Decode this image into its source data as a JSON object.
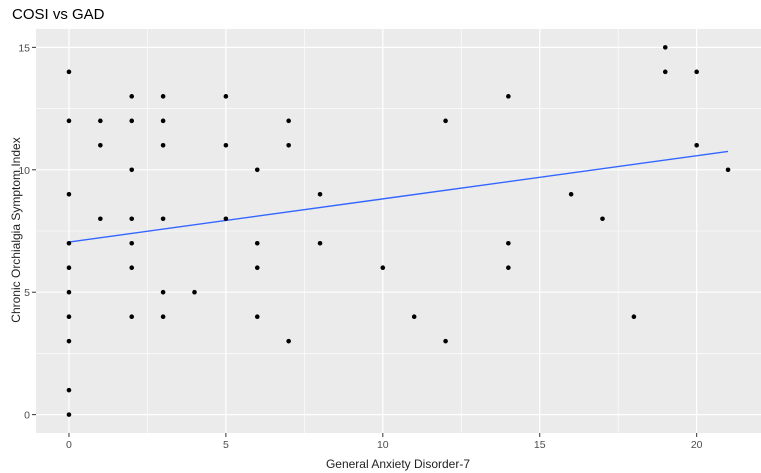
{
  "chart_data": {
    "type": "scatter",
    "title": "COSI vs GAD",
    "xlabel": "General Anxiety Disorder-7",
    "ylabel": "Chronic Orchialgia Symptom Index",
    "xlim": [
      -1.05,
      22.05
    ],
    "ylim": [
      -0.75,
      15.75
    ],
    "xticks": [
      0,
      5,
      10,
      15,
      20
    ],
    "yticks": [
      0,
      5,
      10,
      15
    ],
    "grid": true,
    "background": "#ebebeb",
    "grid_color": "#ffffff",
    "point_color": "#000000",
    "trend_color": "#3366ff",
    "points": [
      {
        "x": 0,
        "y": 14
      },
      {
        "x": 0,
        "y": 12
      },
      {
        "x": 0,
        "y": 9
      },
      {
        "x": 0,
        "y": 7
      },
      {
        "x": 0,
        "y": 6
      },
      {
        "x": 0,
        "y": 5
      },
      {
        "x": 0,
        "y": 4
      },
      {
        "x": 0,
        "y": 3
      },
      {
        "x": 0,
        "y": 1
      },
      {
        "x": 0,
        "y": 0
      },
      {
        "x": 1,
        "y": 12
      },
      {
        "x": 1,
        "y": 11
      },
      {
        "x": 1,
        "y": 8
      },
      {
        "x": 2,
        "y": 13
      },
      {
        "x": 2,
        "y": 12
      },
      {
        "x": 2,
        "y": 10
      },
      {
        "x": 2,
        "y": 8
      },
      {
        "x": 2,
        "y": 7
      },
      {
        "x": 2,
        "y": 6
      },
      {
        "x": 2,
        "y": 4
      },
      {
        "x": 3,
        "y": 13
      },
      {
        "x": 3,
        "y": 12
      },
      {
        "x": 3,
        "y": 11
      },
      {
        "x": 3,
        "y": 8
      },
      {
        "x": 3,
        "y": 5
      },
      {
        "x": 3,
        "y": 4
      },
      {
        "x": 4,
        "y": 5
      },
      {
        "x": 5,
        "y": 13
      },
      {
        "x": 5,
        "y": 11
      },
      {
        "x": 5,
        "y": 8
      },
      {
        "x": 6,
        "y": 10
      },
      {
        "x": 6,
        "y": 7
      },
      {
        "x": 6,
        "y": 6
      },
      {
        "x": 6,
        "y": 4
      },
      {
        "x": 7,
        "y": 12
      },
      {
        "x": 7,
        "y": 11
      },
      {
        "x": 7,
        "y": 3
      },
      {
        "x": 8,
        "y": 9
      },
      {
        "x": 8,
        "y": 7
      },
      {
        "x": 10,
        "y": 6
      },
      {
        "x": 11,
        "y": 4
      },
      {
        "x": 12,
        "y": 12
      },
      {
        "x": 12,
        "y": 3
      },
      {
        "x": 14,
        "y": 13
      },
      {
        "x": 14,
        "y": 7
      },
      {
        "x": 14,
        "y": 6
      },
      {
        "x": 16,
        "y": 9
      },
      {
        "x": 17,
        "y": 8
      },
      {
        "x": 18,
        "y": 4
      },
      {
        "x": 19,
        "y": 15
      },
      {
        "x": 19,
        "y": 14
      },
      {
        "x": 20,
        "y": 14
      },
      {
        "x": 20,
        "y": 11
      },
      {
        "x": 21,
        "y": 10
      }
    ],
    "trend_line": {
      "x": [
        0,
        21
      ],
      "y": [
        7.05,
        10.75
      ]
    }
  }
}
